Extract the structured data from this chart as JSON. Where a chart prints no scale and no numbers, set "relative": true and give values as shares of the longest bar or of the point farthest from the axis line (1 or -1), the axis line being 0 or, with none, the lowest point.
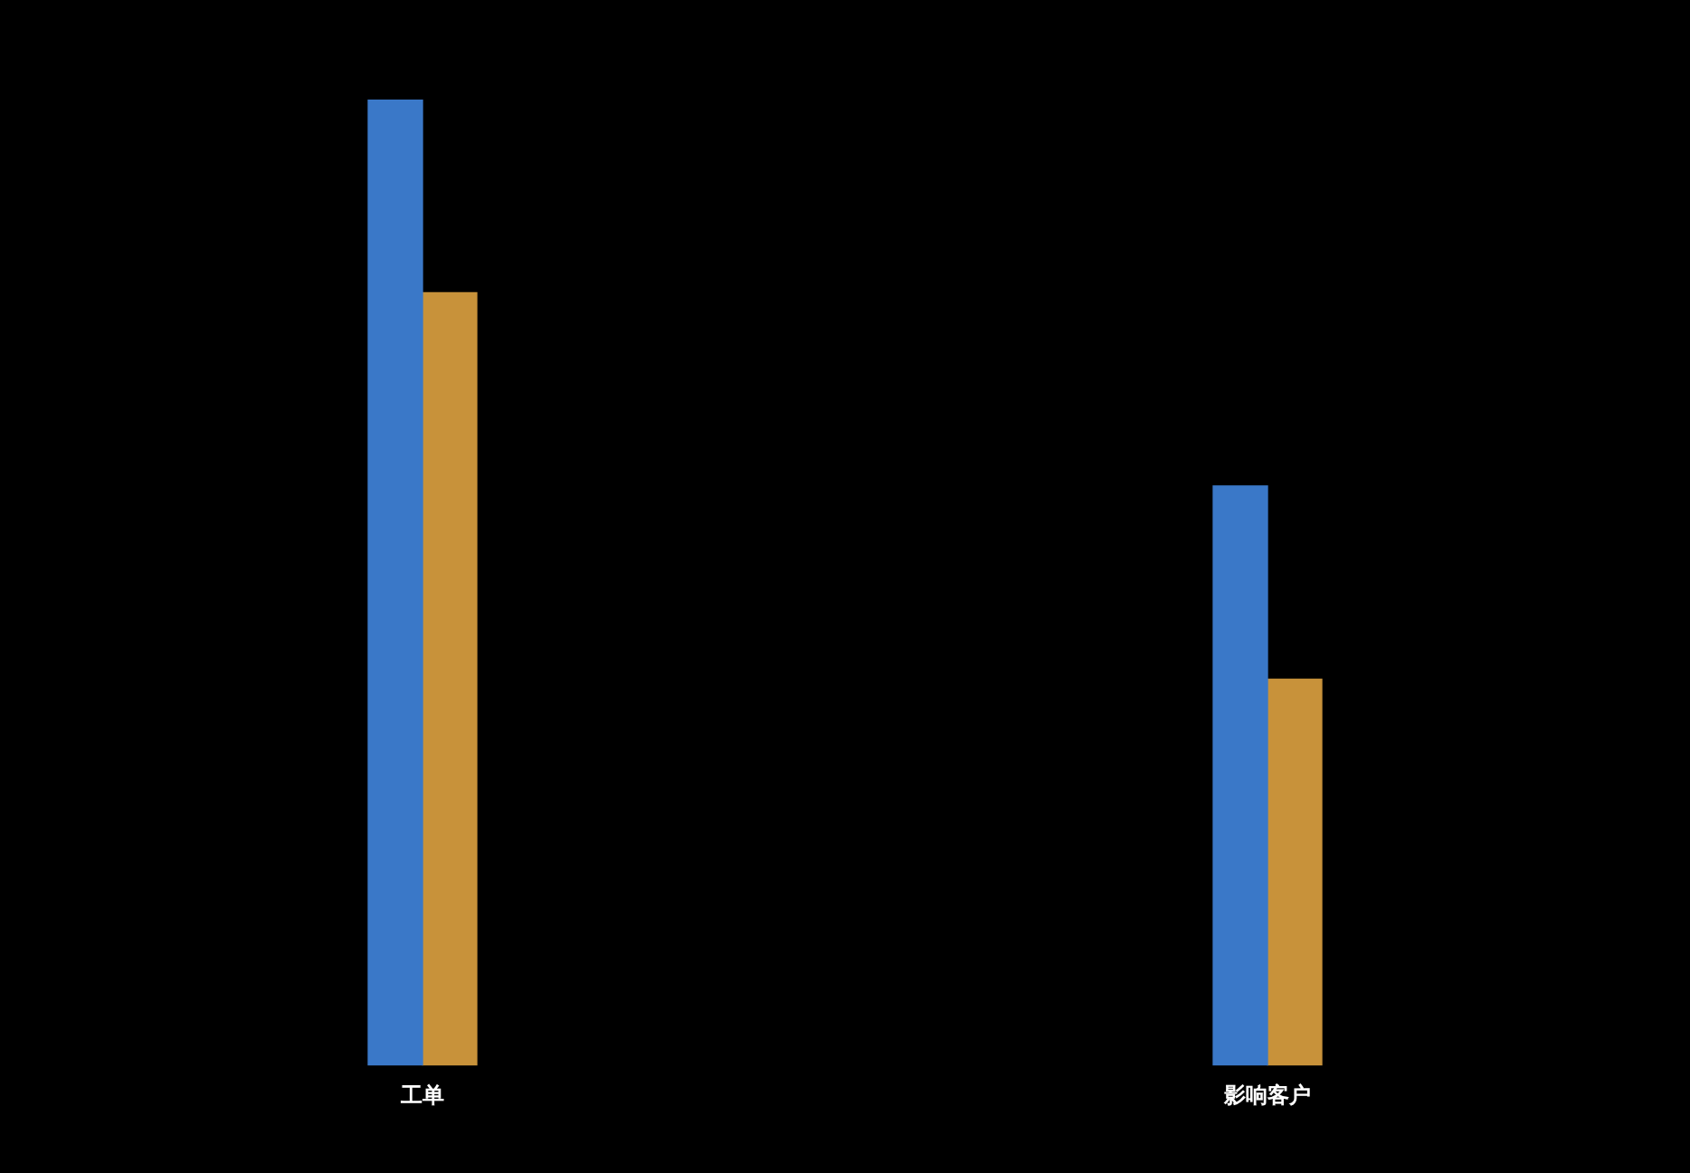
{
  "chart_data": {
    "type": "bar",
    "relative": true,
    "categories": [
      "工单",
      "影响客户"
    ],
    "series": [
      {
        "color": "#3a78c8",
        "values": [
          1,
          0.6
        ]
      },
      {
        "color": "#c8923a",
        "values": [
          0.8,
          0.4
        ]
      }
    ],
    "legend": false
  }
}
